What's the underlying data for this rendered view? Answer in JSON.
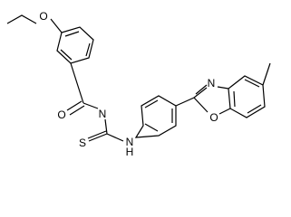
{
  "atoms": [
    {
      "label": "O"
    },
    {
      "label": "O"
    },
    {
      "label": "N"
    },
    {
      "label": "S"
    },
    {
      "label": "N"
    },
    {
      "label": "H"
    },
    {
      "label": "N"
    },
    {
      "label": "O"
    }
  ]
}
